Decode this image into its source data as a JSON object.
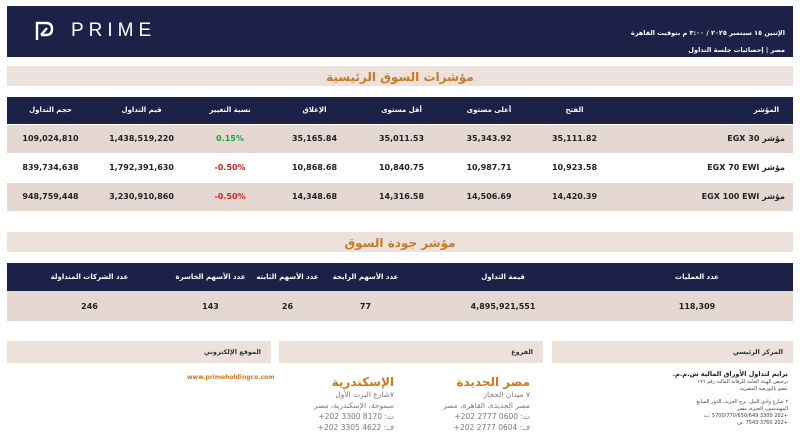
{
  "header": {
    "brand": "PRIME",
    "date_line": "الإثنين ١٥ سبتمبر ٢٠٢٥ / ٣:٠٠ م بتوقيت القاهرة",
    "subtitle": "مصر | إحصائيات جلسة التداول"
  },
  "market": {
    "title": "مؤشرات السوق الرئيسية",
    "columns": [
      "المؤشر",
      "الفتح",
      "أعلى مستوى",
      "أقل مستوى",
      "الإغلاق",
      "نسبة التغيير",
      "قيم التداول",
      "حجم التداول"
    ],
    "rows": [
      {
        "name": "مؤشر EGX 30",
        "open": "35,111.82",
        "high": "35,343.92",
        "low": "35,011.53",
        "close": "35,165.84",
        "change": "0.15%",
        "direction": "up",
        "value": "1,438,519,220",
        "volume": "109,024,810"
      },
      {
        "name": "مؤشر EGX 70 EWI",
        "open": "10,923.58",
        "high": "10,987.71",
        "low": "10,840.75",
        "close": "10,868.68",
        "change": "-0.50%",
        "direction": "down",
        "value": "1,792,391,630",
        "volume": "839,734,638"
      },
      {
        "name": "مؤشر EGX 100 EWI",
        "open": "14,420.39",
        "high": "14,506.69",
        "low": "14,316.58",
        "close": "14,348.68",
        "change": "-0.50%",
        "direction": "down",
        "value": "3,230,910,860",
        "volume": "948,759,448"
      }
    ]
  },
  "quality": {
    "title": "مؤشر جودة السوق",
    "columns": [
      "عدد العمليات",
      "قيمة التداول",
      "عدد الأسهم الرابحة",
      "عدد الأسهم الثابته",
      "عدد الأسهم الخاسرة",
      "عدد الشركات المتداولة"
    ],
    "values": [
      "118,309",
      "4,895,921,551",
      "77",
      "26",
      "143",
      "246"
    ]
  },
  "footer": {
    "hq_label": "المركز الرئيسي",
    "branches_label": "الفروع",
    "website_label": "الموقع الإلكتروني",
    "website": "www.primeholdingco.com",
    "hq": {
      "name": "برايم لتداول الأوراق المالية ش.م.م.",
      "lines": [
        "ترخيص الهيئة العامة للرقابة المالية رقم ١٧٦",
        "عضو بالبورصة المصرية"
      ],
      "address": [
        "٢ شارع وادي النيل، برج الحرية، الدور السابع",
        "المهندسين، الجيزة، مصر"
      ],
      "tel": "+202 3300 5700/770/650/649 :ت",
      "fax": "+202 3760 7543 :ف"
    },
    "branch1": {
      "title": "مصر الجديدة",
      "lines": [
        "٧ ميدان الحجاز",
        "مصر الجديدة، القاهرة، مصر",
        "ت: 0600 2777 202+",
        "ف: 0604 2777 202+"
      ]
    },
    "branch2": {
      "title": "الإسكندرية",
      "lines": [
        "٧شارع البرت الأول",
        "سموحة، الإسكندرية، مصر",
        "ت: 8170 3300 202+",
        "ف: 4622 3305 202+"
      ]
    }
  }
}
